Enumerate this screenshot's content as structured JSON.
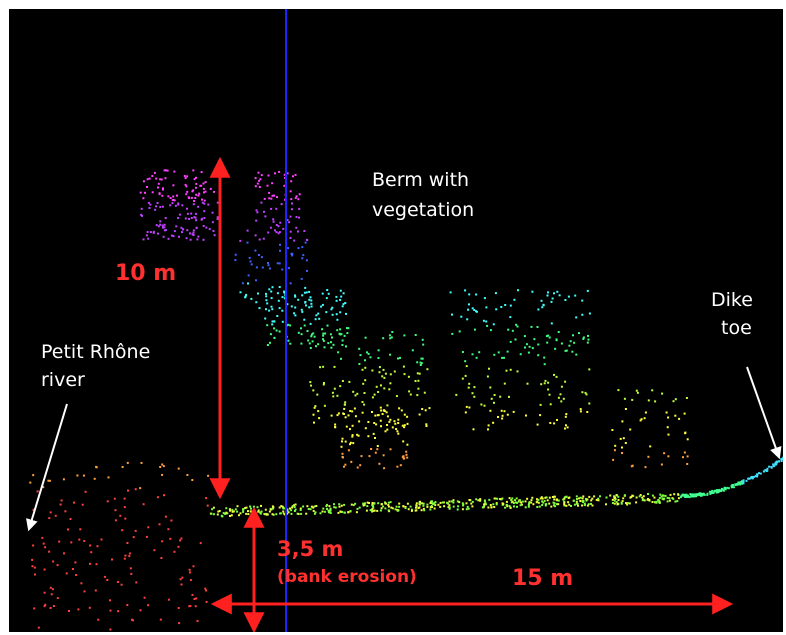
{
  "colors": {
    "background": "#000000",
    "measurement": "#ff2020",
    "section_line": "#2020ff",
    "annotation": "#ffffff"
  },
  "labels": {
    "berm_line1": "Berm with",
    "berm_line2": "vegetation",
    "dike_line1": "Dike",
    "dike_line2": "toe",
    "river_line1": "Petit Rhône",
    "river_line2": "river",
    "height": "10 m",
    "erosion_value": "3,5 m",
    "erosion_note": "(bank erosion)",
    "width": "15 m"
  }
}
